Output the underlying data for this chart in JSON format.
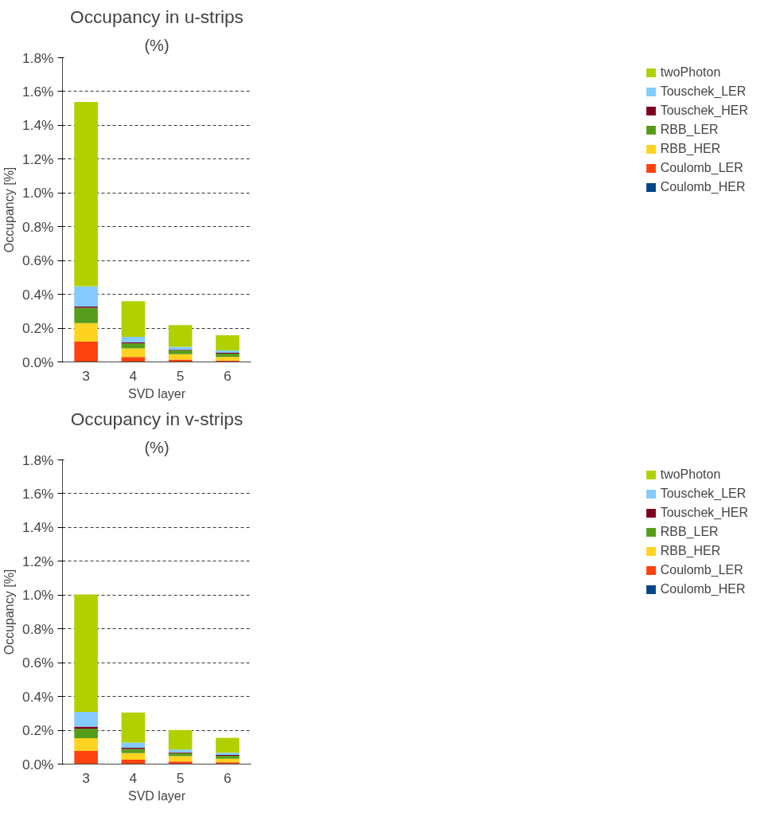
{
  "chart_data": [
    {
      "type": "bar",
      "title": "Occupancy in u-strips",
      "subtitle": "(%)",
      "xlabel": "SVD layer",
      "ylabel": "Occupancy [%]",
      "categories": [
        "3",
        "4",
        "5",
        "6"
      ],
      "stacked": true,
      "grid": "y",
      "legend": "right",
      "ylim": [
        0,
        1.8
      ],
      "yticks": [
        {
          "value": 0,
          "label": "0.0%"
        },
        {
          "value": 0.2,
          "label": "0.2%"
        },
        {
          "value": 0.4,
          "label": "0.4%"
        },
        {
          "value": 0.6,
          "label": "0.6%"
        },
        {
          "value": 0.8,
          "label": "0.8%"
        },
        {
          "value": 1.0,
          "label": "1.0%"
        },
        {
          "value": 1.2,
          "label": "1.2%"
        },
        {
          "value": 1.4,
          "label": "1.4%"
        },
        {
          "value": 1.6,
          "label": "1.6%"
        },
        {
          "value": 1.8,
          "label": "1.8%"
        }
      ],
      "series": [
        {
          "name": "Coulomb_HER",
          "color": "#004586",
          "values": [
            0,
            0,
            0,
            0
          ]
        },
        {
          "name": "Coulomb_LER",
          "color": "#ff420e",
          "values": [
            0.12,
            0.03,
            0.014,
            0.008
          ]
        },
        {
          "name": "RBB_HER",
          "color": "#ffd320",
          "values": [
            0.11,
            0.05,
            0.032,
            0.022
          ]
        },
        {
          "name": "RBB_LER",
          "color": "#579d1c",
          "values": [
            0.09,
            0.03,
            0.022,
            0.02
          ]
        },
        {
          "name": "Touschek_HER",
          "color": "#7e0021",
          "values": [
            0.008,
            0.005,
            0.004,
            0.004
          ]
        },
        {
          "name": "Touschek_LER",
          "color": "#83caff",
          "values": [
            0.12,
            0.034,
            0.018,
            0.014
          ]
        },
        {
          "name": "twoPhoton",
          "color": "#b2d000",
          "values": [
            1.09,
            0.21,
            0.128,
            0.09
          ]
        }
      ]
    },
    {
      "type": "bar",
      "title": "Occupancy in v-strips",
      "subtitle": "(%)",
      "xlabel": "SVD layer",
      "ylabel": "Occupancy [%]",
      "categories": [
        "3",
        "4",
        "5",
        "6"
      ],
      "stacked": true,
      "grid": "y",
      "legend": "right",
      "ylim": [
        0,
        1.8
      ],
      "yticks": [
        {
          "value": 0,
          "label": "0.0%"
        },
        {
          "value": 0.2,
          "label": "0.2%"
        },
        {
          "value": 0.4,
          "label": "0.4%"
        },
        {
          "value": 0.6,
          "label": "0.6%"
        },
        {
          "value": 0.8,
          "label": "0.8%"
        },
        {
          "value": 1.0,
          "label": "1.0%"
        },
        {
          "value": 1.2,
          "label": "1.2%"
        },
        {
          "value": 1.4,
          "label": "1.4%"
        },
        {
          "value": 1.6,
          "label": "1.6%"
        },
        {
          "value": 1.8,
          "label": "1.8%"
        }
      ],
      "series": [
        {
          "name": "Coulomb_HER",
          "color": "#004586",
          "values": [
            0,
            0,
            0,
            0
          ]
        },
        {
          "name": "Coulomb_LER",
          "color": "#ff420e",
          "values": [
            0.078,
            0.026,
            0.015,
            0.011
          ]
        },
        {
          "name": "RBB_HER",
          "color": "#ffd320",
          "values": [
            0.075,
            0.039,
            0.032,
            0.021
          ]
        },
        {
          "name": "RBB_LER",
          "color": "#579d1c",
          "values": [
            0.057,
            0.025,
            0.018,
            0.017
          ]
        },
        {
          "name": "Touschek_HER",
          "color": "#7e0021",
          "values": [
            0.011,
            0.007,
            0.004,
            0.005
          ]
        },
        {
          "name": "Touschek_LER",
          "color": "#83caff",
          "values": [
            0.088,
            0.03,
            0.017,
            0.013
          ]
        },
        {
          "name": "twoPhoton",
          "color": "#b2d000",
          "values": [
            0.695,
            0.178,
            0.116,
            0.088
          ]
        }
      ]
    }
  ]
}
